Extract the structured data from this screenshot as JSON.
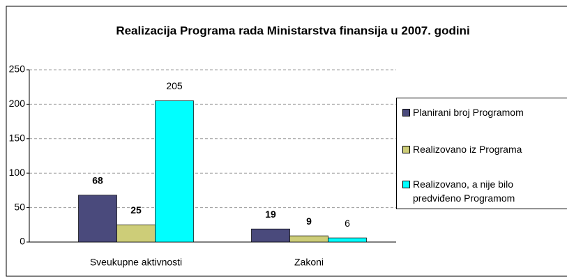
{
  "chart_data": {
    "type": "bar",
    "title": "Realizacija Programa rada Ministarstva finansija u 2007. godini",
    "categories": [
      "Sveukupne aktivnosti",
      "Zakoni"
    ],
    "series": [
      {
        "name": "Planirani broj Programom",
        "color": "#4a4a7c",
        "values": [
          68,
          19
        ]
      },
      {
        "name": "Realizovano iz Programa",
        "color": "#cdcd78",
        "values": [
          25,
          9
        ]
      },
      {
        "name": "Realizovano, a nije bilo predviđeno Programom",
        "color": "#00ffff",
        "values": [
          205,
          6
        ]
      }
    ],
    "ylim": [
      0,
      250
    ],
    "yticks": [
      0,
      50,
      100,
      150,
      200,
      250
    ],
    "grid": true,
    "legend": "right"
  }
}
